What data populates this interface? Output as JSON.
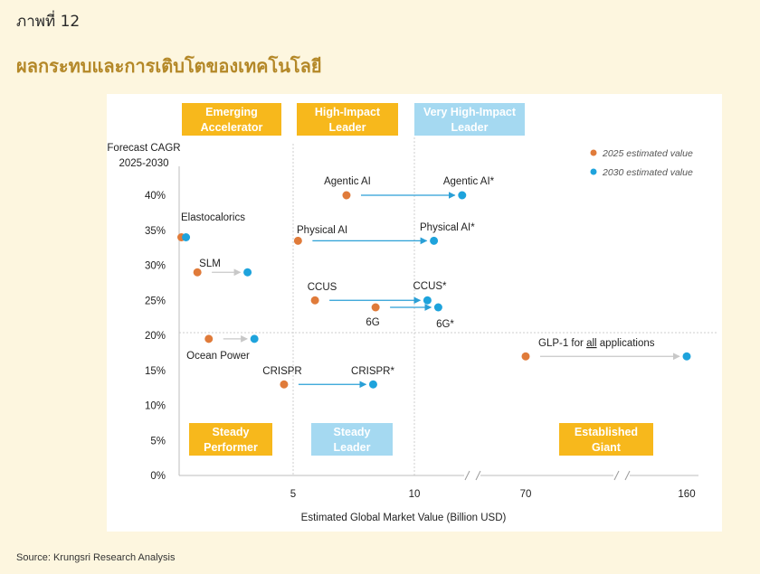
{
  "figure_number": "ภาพที่ 12",
  "title": "ผลกระทบและการเติบโตของเทคโนโลยี",
  "source": "Source: Krungsri Research Analysis",
  "colors": {
    "value_2025": "#e07b3a",
    "value_2030": "#1ea3dc",
    "orange_box": "#f7b81c",
    "blue_box": "#a5d9f1",
    "arrow_blue": "#2a9fd6",
    "arrow_gray": "#c8c8c8"
  },
  "chart_data": {
    "type": "scatter",
    "ylabel": "Forecast CAGR\n2025-2030",
    "xlabel": "Estimated Global Market Value (Billion USD)",
    "yticks": [
      "40%",
      "35%",
      "30%",
      "25%",
      "20%",
      "15%",
      "10%",
      "5%",
      "0%"
    ],
    "ylim": [
      0,
      40
    ],
    "xticks": [
      "5",
      "10",
      "70",
      "160"
    ],
    "x_scale": "broken axis (breaks between 10–70 and 70–160)",
    "legend": {
      "position": "top-right",
      "entries": [
        {
          "label": "2025 estimated value",
          "color": "#e07b3a"
        },
        {
          "label": "2030 estimated value",
          "color": "#1ea3dc"
        }
      ]
    },
    "quadrants": [
      {
        "label": "Emerging\nAccelerator",
        "style": "orange"
      },
      {
        "label": "High-Impact\nLeader",
        "style": "orange"
      },
      {
        "label": "Very High-Impact\nLeader",
        "style": "blue"
      },
      {
        "label": "Steady\nPerformer",
        "style": "orange"
      },
      {
        "label": "Steady\nLeader",
        "style": "blue"
      },
      {
        "label": "Established\nGiant",
        "style": "orange"
      }
    ],
    "series": [
      {
        "name": "Agentic AI",
        "label_2025": "Agentic AI",
        "label_2030": "Agentic AI*",
        "x_2025": 7.2,
        "x_2030": 12.2,
        "y_2025": 40,
        "y_2030": 40,
        "arrow": "blue"
      },
      {
        "name": "Physical AI",
        "label_2025": "Physical AI",
        "label_2030": "Physical AI*",
        "x_2025": 5.2,
        "x_2030": 10.9,
        "y_2025": 33.5,
        "y_2030": 33.5,
        "arrow": "blue"
      },
      {
        "name": "Elastocalorics",
        "label_2025": "Elastocalorics",
        "label_2030": "",
        "x_2025": 0.1,
        "x_2030": 0.3,
        "y_2025": 34,
        "y_2030": 34,
        "arrow": "none"
      },
      {
        "name": "SLM",
        "label_2025": "SLM",
        "label_2030": "",
        "x_2025": 0.8,
        "x_2030": 3.0,
        "y_2025": 29,
        "y_2030": 29,
        "arrow": "gray"
      },
      {
        "name": "CCUS",
        "label_2025": "CCUS",
        "label_2030": "CCUS*",
        "x_2025": 5.9,
        "x_2030": 10.6,
        "y_2025": 25,
        "y_2030": 25,
        "arrow": "blue"
      },
      {
        "name": "6G",
        "label_2025": "6G",
        "label_2030": "6G*",
        "x_2025": 8.4,
        "x_2030": 11.1,
        "y_2025": 24,
        "y_2030": 24,
        "arrow": "blue"
      },
      {
        "name": "Ocean Power",
        "label_2025": "Ocean Power",
        "label_2030": "",
        "x_2025": 1.3,
        "x_2030": 3.3,
        "y_2025": 19.5,
        "y_2030": 19.5,
        "arrow": "gray"
      },
      {
        "name": "GLP-1 for all applications",
        "label_2025": "GLP-1 for all applications",
        "label_2030": "",
        "x_2025": 70,
        "x_2030": 160,
        "y_2025": 17,
        "y_2030": 17,
        "arrow": "gray"
      },
      {
        "name": "CRISPR",
        "label_2025": "CRISPR",
        "label_2030": "CRISPR*",
        "x_2025": 4.6,
        "x_2030": 8.3,
        "y_2025": 13,
        "y_2030": 13,
        "arrow": "blue"
      }
    ]
  }
}
